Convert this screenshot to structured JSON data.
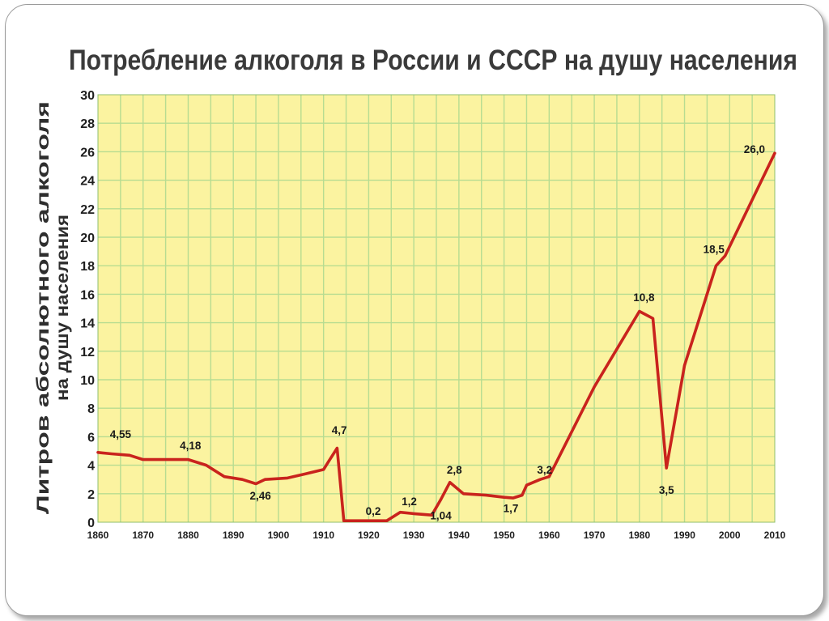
{
  "colors": {
    "plot_background": "#fbf3a0",
    "grid": "#b7dc91",
    "line": "#c9231d",
    "text": "#1e1e1e"
  },
  "chart_data": {
    "type": "line",
    "title": "Потребление алкоголя в России и СССР на душу населения",
    "ylabel_lines": [
      "Литров абсолютного алкоголя",
      "на душу населения"
    ],
    "xlabel": "",
    "xlim": [
      1860,
      2010
    ],
    "ylim": [
      0,
      30
    ],
    "x_ticks": [
      1860,
      1870,
      1880,
      1890,
      1900,
      1910,
      1920,
      1930,
      1940,
      1950,
      1960,
      1970,
      1980,
      1990,
      2000,
      2010
    ],
    "y_ticks": [
      0,
      2,
      4,
      6,
      8,
      10,
      12,
      14,
      16,
      18,
      20,
      22,
      24,
      26,
      28,
      30
    ],
    "x_grid_minor_step": 5,
    "grid": true,
    "legend": "none",
    "series": [
      {
        "points": [
          [
            1860,
            4.9
          ],
          [
            1863,
            4.8
          ],
          [
            1867,
            4.7
          ],
          [
            1870,
            4.4
          ],
          [
            1875,
            4.4
          ],
          [
            1880,
            4.4
          ],
          [
            1884,
            4.0
          ],
          [
            1888,
            3.2
          ],
          [
            1892,
            3.0
          ],
          [
            1895,
            2.7
          ],
          [
            1897,
            3.0
          ],
          [
            1902,
            3.1
          ],
          [
            1906,
            3.4
          ],
          [
            1910,
            3.7
          ],
          [
            1911,
            4.2
          ],
          [
            1913,
            5.2
          ],
          [
            1914.5,
            0.1
          ],
          [
            1917,
            0.1
          ],
          [
            1920,
            0.1
          ],
          [
            1924,
            0.1
          ],
          [
            1926,
            0.5
          ],
          [
            1927,
            0.7
          ],
          [
            1930,
            0.6
          ],
          [
            1934,
            0.5
          ],
          [
            1936,
            1.6
          ],
          [
            1938,
            2.8
          ],
          [
            1941,
            2.0
          ],
          [
            1946,
            1.9
          ],
          [
            1950,
            1.75
          ],
          [
            1952,
            1.7
          ],
          [
            1954,
            1.9
          ],
          [
            1955,
            2.6
          ],
          [
            1958,
            3.0
          ],
          [
            1960,
            3.2
          ],
          [
            1970,
            9.5
          ],
          [
            1980,
            14.8
          ],
          [
            1983,
            14.3
          ],
          [
            1986,
            3.8
          ],
          [
            1990,
            11.0
          ],
          [
            1997,
            18.0
          ],
          [
            1999,
            18.7
          ],
          [
            2010,
            25.9
          ]
        ]
      }
    ],
    "data_labels": [
      {
        "text": "4,55",
        "x": 1865,
        "y": 5.9
      },
      {
        "text": "4,18",
        "x": 1880.5,
        "y": 5.1
      },
      {
        "text": "2,46",
        "x": 1896,
        "y": 1.6
      },
      {
        "text": "4,7",
        "x": 1913.5,
        "y": 6.2
      },
      {
        "text": "0,2",
        "x": 1921,
        "y": 0.5
      },
      {
        "text": "1,2",
        "x": 1929,
        "y": 1.2
      },
      {
        "text": "1,04",
        "x": 1936,
        "y": 0.2
      },
      {
        "text": "2,8",
        "x": 1939,
        "y": 3.4
      },
      {
        "text": "1,7",
        "x": 1951.5,
        "y": 0.7
      },
      {
        "text": "3,2",
        "x": 1959,
        "y": 3.4
      },
      {
        "text": "10,8",
        "x": 1981,
        "y": 15.5
      },
      {
        "text": "3,5",
        "x": 1986,
        "y": 2.0
      },
      {
        "text": "18,5",
        "x": 1996.5,
        "y": 18.9
      },
      {
        "text": "26,0",
        "x": 2005.5,
        "y": 25.9
      }
    ]
  }
}
